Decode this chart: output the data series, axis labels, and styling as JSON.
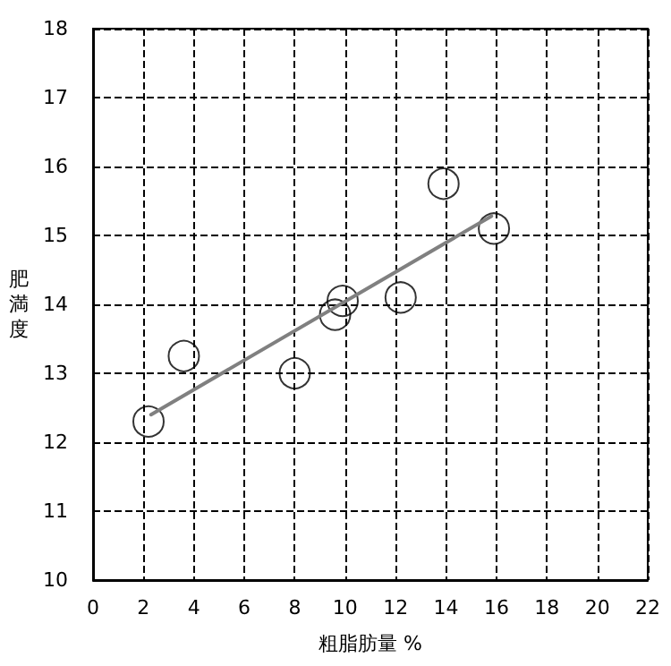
{
  "chart_data": {
    "type": "scatter",
    "xlabel": "粗脂肪量 %",
    "ylabel": "肥満度",
    "xlim": [
      0,
      22
    ],
    "xticks": [
      0,
      2,
      4,
      6,
      8,
      10,
      12,
      14,
      16,
      18,
      20,
      22
    ],
    "ylim": [
      10,
      18
    ],
    "yticks": [
      10,
      11,
      12,
      13,
      14,
      15,
      16,
      17,
      18
    ],
    "grid": true,
    "marker": "circle",
    "series": [
      {
        "color": "#000000",
        "x": [
          2.2,
          3.6,
          8,
          9.6,
          9.9,
          12.2,
          13.9,
          15.9
        ],
        "values": [
          12.3,
          13.25,
          13.0,
          13.85,
          14.05,
          14.1,
          15.75,
          15.1
        ]
      },
      {
        "type": "line",
        "color": "#808080",
        "line_style": "solid",
        "marker": "none",
        "x": [
          2.3,
          15.8
        ],
        "values": [
          12.4,
          15.28
        ]
      }
    ]
  }
}
